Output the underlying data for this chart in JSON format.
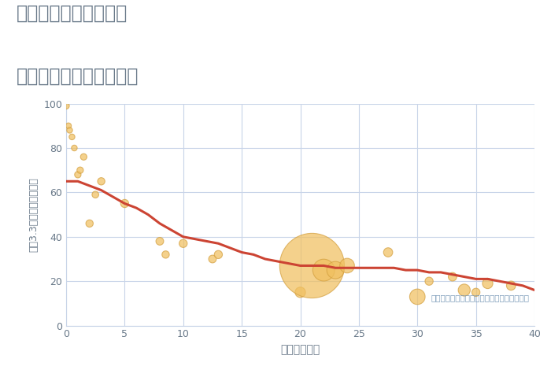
{
  "title_line1": "岐阜県大垣市御殿町の",
  "title_line2": "築年数別中古戸建て価格",
  "xlabel": "築年数（年）",
  "ylabel": "坪（3.3㎡）単価（万円）",
  "annotation": "円の大きさは、取引のあった物件面積を示す",
  "xlim": [
    0,
    40
  ],
  "ylim": [
    0,
    100
  ],
  "xticks": [
    0,
    5,
    10,
    15,
    20,
    25,
    30,
    35,
    40
  ],
  "yticks": [
    0,
    20,
    40,
    60,
    80,
    100
  ],
  "bg_color": "#ffffff",
  "plot_bg_color": "#ffffff",
  "grid_color": "#c8d4e8",
  "title_color": "#6a7a8a",
  "axis_label_color": "#6a7a8a",
  "tick_color": "#6a7a8a",
  "annotation_color": "#7a9ab8",
  "bubble_color": "#f0c060",
  "bubble_edge_color": "#d4a040",
  "line_color": "#cc4433",
  "line_width": 2.2,
  "scatter_x": [
    0.0,
    0.2,
    0.3,
    0.5,
    0.7,
    1.0,
    1.2,
    1.5,
    2.0,
    2.5,
    3.0,
    5.0,
    8.0,
    8.5,
    10.0,
    12.5,
    13.0,
    20.0,
    21.0,
    22.0,
    23.0,
    24.0,
    27.5,
    30.0,
    31.0,
    33.0,
    34.0,
    35.0,
    36.0,
    38.0
  ],
  "scatter_y": [
    99,
    90,
    88,
    85,
    80,
    68,
    70,
    76,
    46,
    59,
    65,
    55,
    38,
    32,
    37,
    30,
    32,
    15,
    27,
    25,
    25,
    27,
    33,
    13,
    20,
    22,
    16,
    15,
    19,
    18
  ],
  "scatter_size": [
    35,
    28,
    28,
    28,
    28,
    35,
    35,
    35,
    45,
    38,
    45,
    55,
    50,
    45,
    55,
    50,
    55,
    90,
    3500,
    400,
    250,
    180,
    70,
    200,
    55,
    60,
    120,
    55,
    90,
    70
  ],
  "line_x": [
    0,
    0.5,
    1,
    1.5,
    2,
    2.5,
    3,
    4,
    5,
    6,
    7,
    8,
    9,
    10,
    11,
    12,
    13,
    14,
    15,
    16,
    17,
    18,
    19,
    20,
    21,
    22,
    23,
    24,
    25,
    26,
    27,
    28,
    29,
    30,
    31,
    32,
    33,
    34,
    35,
    36,
    37,
    38,
    39,
    40
  ],
  "line_y": [
    65,
    65,
    65,
    64,
    63,
    62,
    61,
    58,
    55,
    53,
    50,
    46,
    43,
    40,
    39,
    38,
    37,
    35,
    33,
    32,
    30,
    29,
    28,
    27,
    27,
    27,
    26,
    26,
    26,
    26,
    26,
    26,
    25,
    25,
    24,
    24,
    23,
    22,
    21,
    21,
    20,
    19,
    18,
    16
  ]
}
